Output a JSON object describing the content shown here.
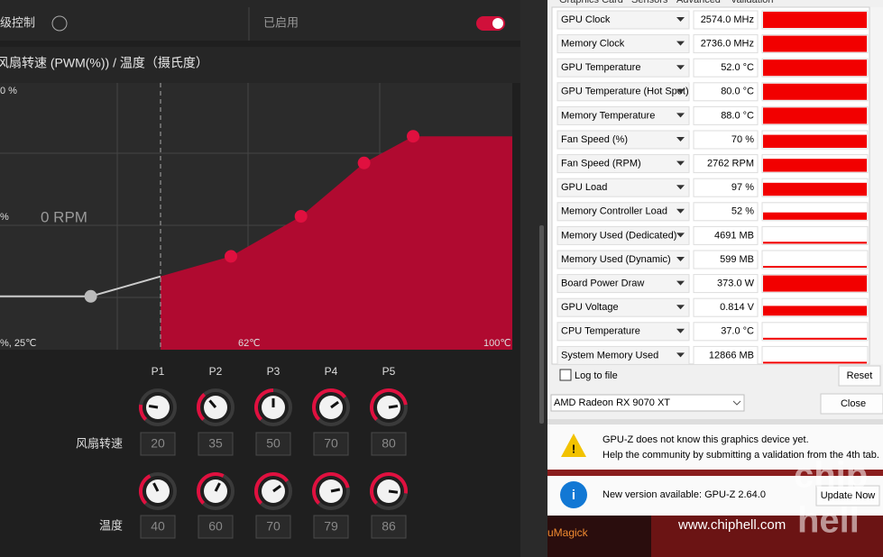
{
  "fan_panel": {
    "top_label": "级控制",
    "status": "已启用",
    "title": "风扇转速 (PWM(%)) / 温度（摄氏度）",
    "y_top": "0 %",
    "y_mid": "%",
    "zero_rpm": "0 RPM",
    "x_start": "%, 25℃",
    "x_mid": "62℃",
    "x_end": "100℃",
    "points": [
      "P1",
      "P2",
      "P3",
      "P4",
      "P5"
    ],
    "speed_label": "风扇转速",
    "speed": [
      20,
      35,
      50,
      70,
      80
    ],
    "temp_label": "温度",
    "temp": [
      40,
      60,
      70,
      79,
      86
    ]
  },
  "gpuz": {
    "tabs": [
      "Graphics Card",
      "Sensors",
      "Advanced",
      "Validation"
    ],
    "sensors": [
      {
        "name": "GPU Clock",
        "value": "2574.0 MHz"
      },
      {
        "name": "Memory Clock",
        "value": "2736.0 MHz"
      },
      {
        "name": "GPU Temperature",
        "value": "52.0 °C"
      },
      {
        "name": "GPU Temperature (Hot Spot)",
        "value": "80.0 °C"
      },
      {
        "name": "Memory Temperature",
        "value": "88.0 °C"
      },
      {
        "name": "Fan Speed (%)",
        "value": "70 %"
      },
      {
        "name": "Fan Speed (RPM)",
        "value": "2762 RPM"
      },
      {
        "name": "GPU Load",
        "value": "97 %"
      },
      {
        "name": "Memory Controller Load",
        "value": "52 %"
      },
      {
        "name": "Memory Used (Dedicated)",
        "value": "4691 MB"
      },
      {
        "name": "Memory Used (Dynamic)",
        "value": "599 MB"
      },
      {
        "name": "Board Power Draw",
        "value": "373.0 W"
      },
      {
        "name": "GPU Voltage",
        "value": "0.814 V"
      },
      {
        "name": "CPU Temperature",
        "value": "37.0 °C"
      },
      {
        "name": "System Memory Used",
        "value": "12866 MB"
      }
    ],
    "log": "Log to file",
    "reset": "Reset",
    "device": "AMD Radeon RX 9070 XT",
    "close": "Close",
    "warning": [
      "GPU-Z does not know this graphics device yet.",
      "Help the community by submitting a validation from the 4th tab."
    ],
    "update": "New version available: GPU-Z 2.64.0",
    "update_button": "Update Now"
  },
  "background": {
    "app": "uMagick",
    "watermark": "www.chiphell.com",
    "logo": [
      "chip",
      "hell"
    ]
  }
}
